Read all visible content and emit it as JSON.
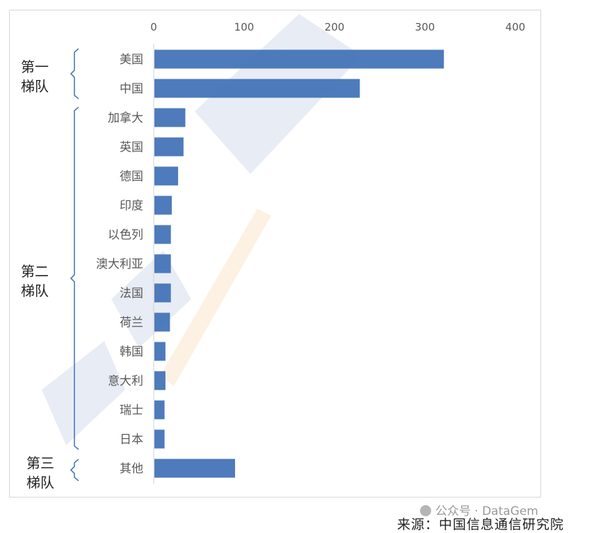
{
  "chart_data": {
    "type": "bar",
    "orientation": "horizontal",
    "categories": [
      "美国",
      "中国",
      "加拿大",
      "英国",
      "德国",
      "印度",
      "以色列",
      "澳大利亚",
      "法国",
      "荷兰",
      "韩国",
      "意大利",
      "瑞士",
      "日本",
      "其他"
    ],
    "values": [
      321,
      228,
      35,
      33,
      27,
      20,
      19,
      19,
      19,
      18,
      13,
      13,
      12,
      12,
      90
    ],
    "xlim": [
      0,
      400
    ],
    "xticks": [
      "0",
      "100",
      "200",
      "300",
      "400"
    ],
    "axis_position": "top",
    "bar_color": "#3f70b5",
    "grid": false,
    "groups": [
      {
        "label_line1": "第一",
        "label_line2": "梯队",
        "from": 0,
        "to": 1
      },
      {
        "label_line1": "第二",
        "label_line2": "梯队",
        "from": 2,
        "to": 13
      },
      {
        "label_line1": "第三",
        "label_line2": "梯队",
        "from": 14,
        "to": 14
      }
    ],
    "bracket_color": "#4a78bd"
  },
  "watermark": {
    "color": "#3f5fb0"
  },
  "footer": {
    "wechat": "公众号 · DataGem",
    "source": "来源：中国信息通信研究院"
  }
}
